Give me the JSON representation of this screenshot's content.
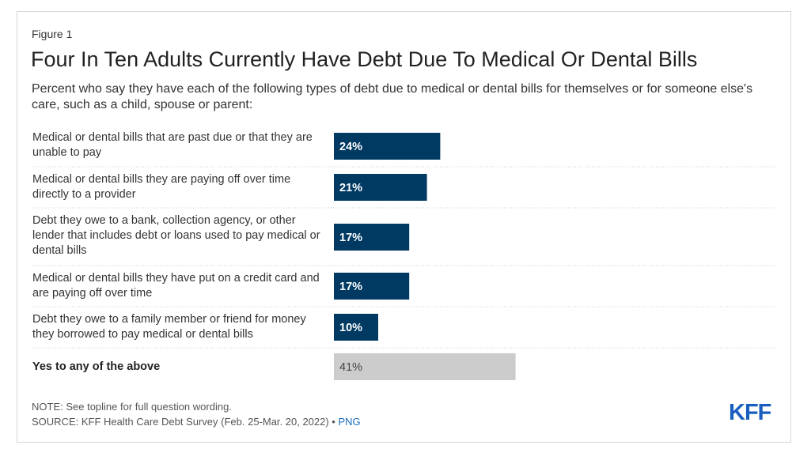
{
  "figure_label": "Figure 1",
  "title": "Four In Ten Adults Currently Have Debt Due To Medical Or Dental Bills",
  "subtitle": "Percent who say they have each of the following types of debt due to medical or dental bills for themselves or for someone else's care, such as a child, spouse or parent:",
  "chart_data": {
    "type": "bar",
    "orientation": "horizontal",
    "categories": [
      "Medical or dental bills that are past due or that they are unable to pay",
      "Medical or dental bills they are paying off over time directly to a provider",
      "Debt they owe to a bank, collection agency, or other lender that includes debt or loans used to pay medical or dental bills",
      "Medical or dental bills they have put on a credit card and are paying off over time",
      "Debt they owe to a family member or friend for money they borrowed to pay medical or dental bills",
      "Yes to any of the above"
    ],
    "values": [
      24,
      21,
      17,
      17,
      10,
      41
    ],
    "value_labels": [
      "24%",
      "21%",
      "17%",
      "17%",
      "10%",
      "41%"
    ],
    "bold_categories": [
      5
    ],
    "colors": [
      "#003a63",
      "#003a63",
      "#003a63",
      "#003a63",
      "#003a63",
      "#cccccc"
    ],
    "label_colors": [
      "#ffffff",
      "#ffffff",
      "#ffffff",
      "#ffffff",
      "#ffffff",
      "#444444"
    ],
    "grid": false
  },
  "note": "NOTE: See topline for full question wording.",
  "source": "SOURCE: KFF Health Care Debt Survey (Feb. 25-Mar. 20, 2022) •",
  "source_link": "PNG",
  "logo": "KFF"
}
